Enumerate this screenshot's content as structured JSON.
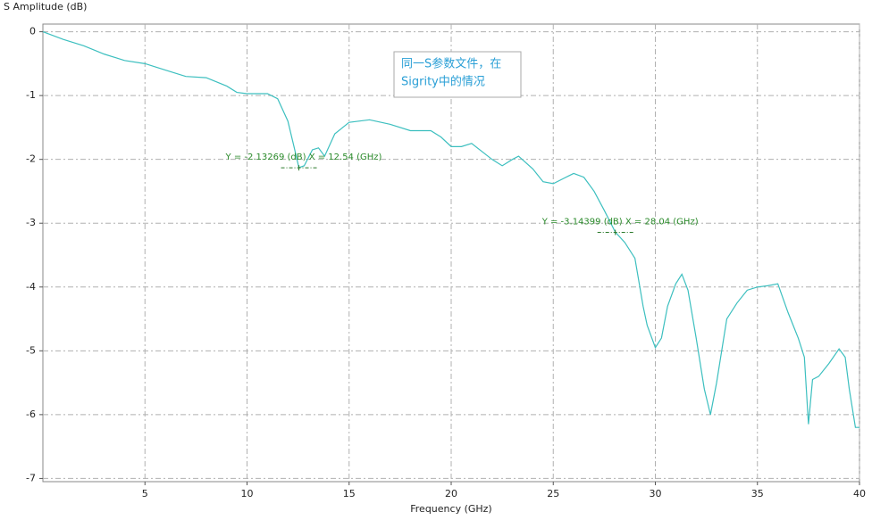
{
  "chart_data": {
    "type": "line",
    "y_axis_title": "S Amplitude (dB)",
    "x_axis_title": "Frequency (GHz)",
    "x": [
      0,
      1,
      2,
      3,
      4,
      5,
      6,
      7,
      8,
      9,
      9.5,
      10,
      11,
      11.5,
      12,
      12.3,
      12.54,
      12.8,
      13.2,
      13.5,
      13.8,
      14.3,
      15,
      16,
      17,
      18,
      19,
      19.5,
      20,
      20.5,
      21,
      22,
      22.5,
      23,
      23.3,
      24,
      24.5,
      25,
      25.5,
      26,
      26.5,
      27,
      27.5,
      28.04,
      28.5,
      29,
      29.4,
      29.6,
      30,
      30.3,
      30.6,
      31,
      31.3,
      31.6,
      32,
      32.4,
      32.7,
      33,
      33.5,
      34,
      34.5,
      35,
      35.5,
      36,
      36.5,
      37,
      37.3,
      37.5,
      37.7,
      38,
      38.5,
      39,
      39.3,
      39.5,
      39.8,
      40
    ],
    "series": [
      {
        "name": "S Amplitude",
        "color": "#3cbfbf",
        "values": [
          0,
          -0.12,
          -0.22,
          -0.35,
          -0.45,
          -0.5,
          -0.6,
          -0.7,
          -0.72,
          -0.85,
          -0.95,
          -0.97,
          -0.97,
          -1.05,
          -1.4,
          -1.8,
          -2.13,
          -2.1,
          -1.85,
          -1.82,
          -1.95,
          -1.6,
          -1.42,
          -1.38,
          -1.45,
          -1.55,
          -1.55,
          -1.65,
          -1.8,
          -1.8,
          -1.75,
          -2.0,
          -2.1,
          -2.0,
          -1.95,
          -2.15,
          -2.35,
          -2.38,
          -2.3,
          -2.22,
          -2.28,
          -2.5,
          -2.8,
          -3.14,
          -3.3,
          -3.55,
          -4.3,
          -4.6,
          -4.95,
          -4.8,
          -4.3,
          -3.95,
          -3.8,
          -4.05,
          -4.8,
          -5.6,
          -6.0,
          -5.5,
          -4.5,
          -4.25,
          -4.05,
          -4.0,
          -3.98,
          -3.95,
          -4.4,
          -4.8,
          -5.1,
          -6.15,
          -5.45,
          -5.4,
          -5.2,
          -4.97,
          -5.1,
          -5.6,
          -6.2,
          -6.2
        ]
      }
    ],
    "xlim": [
      0,
      40
    ],
    "ylim": [
      -7.05,
      0.12
    ],
    "xticks": [
      5,
      10,
      15,
      20,
      25,
      30,
      35,
      40
    ],
    "yticks": [
      0,
      -1,
      -2,
      -3,
      -4,
      -5,
      -6,
      -7
    ],
    "grid": true,
    "markers": [
      {
        "x": 12.54,
        "y": -2.13269,
        "label": "Y = -2.13269 (dB)  X = 12.54 (GHz)"
      },
      {
        "x": 28.04,
        "y": -3.14399,
        "label": "Y = -3.14399 (dB)  X = 28.04 (GHz)"
      }
    ],
    "note": [
      "同一S参数文件，在",
      "Sigrity中的情况"
    ]
  }
}
